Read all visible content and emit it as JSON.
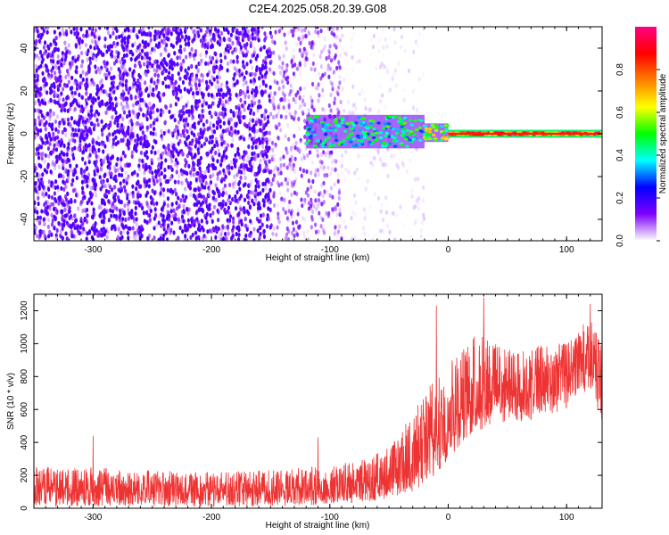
{
  "figure": {
    "title": "C2E4.2025.058.20.39.G08"
  },
  "chart_data": [
    {
      "type": "heatmap",
      "title": "",
      "xlabel": "Height of straight line (km)",
      "ylabel": "Frequency (Hz)",
      "xlim": [
        -350,
        130
      ],
      "ylim": [
        -50,
        50
      ],
      "xticks": [
        -300,
        -200,
        -100,
        0,
        100
      ],
      "yticks": [
        -40,
        -20,
        0,
        20,
        40
      ],
      "colorbar": {
        "label": "Normalized spectral amplitude",
        "range": [
          0,
          1
        ],
        "ticks": [
          0.0,
          0.2,
          0.4,
          0.6,
          0.8
        ],
        "tick_labels": [
          "0.0",
          "0.2",
          "0.4",
          "0.6",
          "0.8"
        ],
        "colormap": [
          "#ffffff",
          "#7f00ff",
          "#0000ff",
          "#00ffff",
          "#00ff00",
          "#ffff00",
          "#ff7f00",
          "#ff0000",
          "#ff0080"
        ]
      },
      "regions": [
        {
          "x_range": [
            -350,
            -150
          ],
          "f_range": [
            -50,
            50
          ],
          "amplitude": 0.15,
          "note_color": "#7f00ff"
        },
        {
          "x_range": [
            -150,
            -90
          ],
          "f_range": [
            -50,
            50
          ],
          "amplitude": 0.08
        },
        {
          "x_range": [
            -90,
            -20
          ],
          "f_range": [
            -50,
            50
          ],
          "amplitude": 0.03
        },
        {
          "x_range": [
            -120,
            -20
          ],
          "f_range": [
            -6,
            8
          ],
          "amplitude": 0.45
        },
        {
          "x_range": [
            -20,
            0
          ],
          "f_range": [
            -3,
            4
          ],
          "amplitude": 0.6
        },
        {
          "x_range": [
            0,
            130
          ],
          "f_range": [
            -1,
            1
          ],
          "amplitude": 0.85
        }
      ],
      "grid": false
    },
    {
      "type": "line",
      "title": "",
      "xlabel": "Height of straight line (km)",
      "ylabel": "SNR (10 * v/v)",
      "xlim": [
        -350,
        130
      ],
      "ylim": [
        0,
        1300
      ],
      "xticks": [
        -300,
        -200,
        -100,
        0,
        100
      ],
      "yticks": [
        0,
        200,
        400,
        600,
        800,
        1000,
        1200
      ],
      "series": [
        {
          "color": "#ee3333",
          "envelope": {
            "x": [
              -350,
              -300,
              -250,
              -200,
              -150,
              -100,
              -70,
              -50,
              -40,
              -30,
              -20,
              -10,
              0,
              10,
              20,
              30,
              40,
              60,
              80,
              100,
              110,
              120,
              130
            ],
            "mean": [
              110,
              110,
              105,
              105,
              105,
              120,
              140,
              180,
              230,
              300,
              380,
              420,
              560,
              600,
              700,
              760,
              720,
              720,
              740,
              800,
              880,
              860,
              700
            ],
            "low": [
              10,
              10,
              10,
              10,
              10,
              20,
              40,
              60,
              80,
              100,
              140,
              160,
              300,
              380,
              450,
              480,
              520,
              520,
              560,
              600,
              700,
              700,
              520
            ],
            "high": [
              250,
              250,
              230,
              220,
              230,
              260,
              300,
              380,
              470,
              580,
              700,
              800,
              900,
              950,
              1050,
              1100,
              1000,
              950,
              1000,
              1000,
              1100,
              1150,
              1000
            ]
          },
          "spikes": [
            {
              "x": -300,
              "y": 440
            },
            {
              "x": -110,
              "y": 430
            },
            {
              "x": -10,
              "y": 1230
            },
            {
              "x": 30,
              "y": 1280
            },
            {
              "x": 120,
              "y": 1240
            }
          ]
        }
      ],
      "grid": false
    }
  ]
}
